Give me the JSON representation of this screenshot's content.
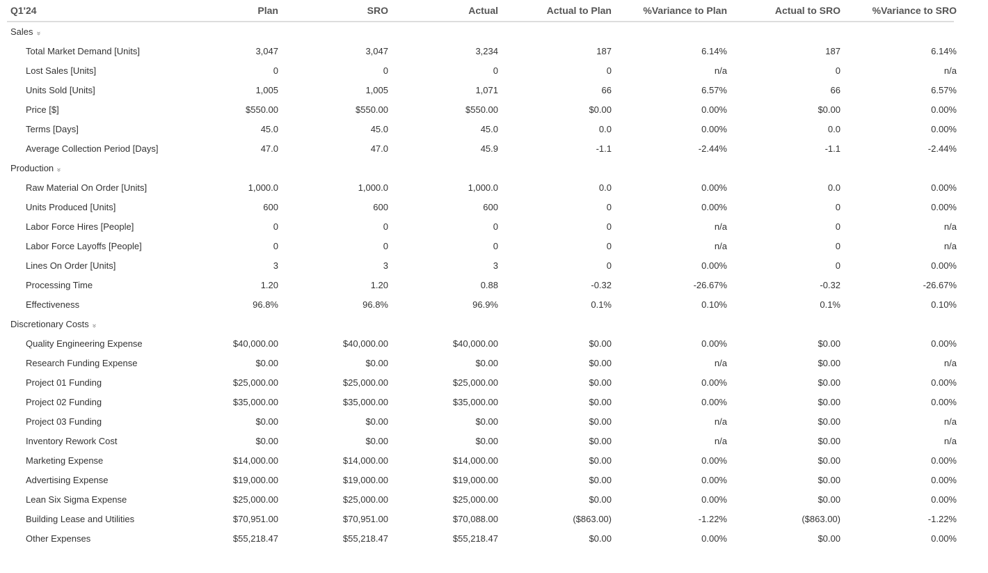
{
  "header": {
    "period": "Q1'24",
    "columns": [
      "Plan",
      "SRO",
      "Actual",
      "Actual to Plan",
      "%Variance to Plan",
      "Actual to SRO",
      "%Variance to SRO"
    ]
  },
  "sections": [
    {
      "title": "Sales",
      "toggle_icon": "double-chevron-down-icon",
      "rows": [
        {
          "label": "Total Market Demand [Units]",
          "values": [
            "3,047",
            "3,047",
            "3,234",
            "187",
            "6.14%",
            "187",
            "6.14%"
          ]
        },
        {
          "label": "Lost Sales [Units]",
          "values": [
            "0",
            "0",
            "0",
            "0",
            "n/a",
            "0",
            "n/a"
          ]
        },
        {
          "label": "Units Sold [Units]",
          "values": [
            "1,005",
            "1,005",
            "1,071",
            "66",
            "6.57%",
            "66",
            "6.57%"
          ]
        },
        {
          "label": "Price [$]",
          "values": [
            "$550.00",
            "$550.00",
            "$550.00",
            "$0.00",
            "0.00%",
            "$0.00",
            "0.00%"
          ]
        },
        {
          "label": "Terms [Days]",
          "values": [
            "45.0",
            "45.0",
            "45.0",
            "0.0",
            "0.00%",
            "0.0",
            "0.00%"
          ]
        },
        {
          "label": "Average Collection Period [Days]",
          "values": [
            "47.0",
            "47.0",
            "45.9",
            "-1.1",
            "-2.44%",
            "-1.1",
            "-2.44%"
          ]
        }
      ]
    },
    {
      "title": "Production",
      "toggle_icon": "double-chevron-down-icon",
      "rows": [
        {
          "label": "Raw Material On Order [Units]",
          "values": [
            "1,000.0",
            "1,000.0",
            "1,000.0",
            "0.0",
            "0.00%",
            "0.0",
            "0.00%"
          ]
        },
        {
          "label": "Units Produced [Units]",
          "values": [
            "600",
            "600",
            "600",
            "0",
            "0.00%",
            "0",
            "0.00%"
          ]
        },
        {
          "label": "Labor Force Hires [People]",
          "values": [
            "0",
            "0",
            "0",
            "0",
            "n/a",
            "0",
            "n/a"
          ]
        },
        {
          "label": "Labor Force Layoffs [People]",
          "values": [
            "0",
            "0",
            "0",
            "0",
            "n/a",
            "0",
            "n/a"
          ]
        },
        {
          "label": "Lines On Order [Units]",
          "values": [
            "3",
            "3",
            "3",
            "0",
            "0.00%",
            "0",
            "0.00%"
          ]
        },
        {
          "label": "Processing Time",
          "values": [
            "1.20",
            "1.20",
            "0.88",
            "-0.32",
            "-26.67%",
            "-0.32",
            "-26.67%"
          ]
        },
        {
          "label": "Effectiveness",
          "values": [
            "96.8%",
            "96.8%",
            "96.9%",
            "0.1%",
            "0.10%",
            "0.1%",
            "0.10%"
          ]
        }
      ]
    },
    {
      "title": "Discretionary Costs",
      "toggle_icon": "double-chevron-down-icon",
      "rows": [
        {
          "label": "Quality Engineering Expense",
          "values": [
            "$40,000.00",
            "$40,000.00",
            "$40,000.00",
            "$0.00",
            "0.00%",
            "$0.00",
            "0.00%"
          ]
        },
        {
          "label": "Research Funding Expense",
          "values": [
            "$0.00",
            "$0.00",
            "$0.00",
            "$0.00",
            "n/a",
            "$0.00",
            "n/a"
          ]
        },
        {
          "label": "Project 01 Funding",
          "values": [
            "$25,000.00",
            "$25,000.00",
            "$25,000.00",
            "$0.00",
            "0.00%",
            "$0.00",
            "0.00%"
          ]
        },
        {
          "label": "Project 02 Funding",
          "values": [
            "$35,000.00",
            "$35,000.00",
            "$35,000.00",
            "$0.00",
            "0.00%",
            "$0.00",
            "0.00%"
          ]
        },
        {
          "label": "Project 03 Funding",
          "values": [
            "$0.00",
            "$0.00",
            "$0.00",
            "$0.00",
            "n/a",
            "$0.00",
            "n/a"
          ]
        },
        {
          "label": "Inventory Rework Cost",
          "values": [
            "$0.00",
            "$0.00",
            "$0.00",
            "$0.00",
            "n/a",
            "$0.00",
            "n/a"
          ]
        },
        {
          "label": "Marketing Expense",
          "values": [
            "$14,000.00",
            "$14,000.00",
            "$14,000.00",
            "$0.00",
            "0.00%",
            "$0.00",
            "0.00%"
          ]
        },
        {
          "label": "Advertising Expense",
          "values": [
            "$19,000.00",
            "$19,000.00",
            "$19,000.00",
            "$0.00",
            "0.00%",
            "$0.00",
            "0.00%"
          ]
        },
        {
          "label": "Lean Six Sigma Expense",
          "values": [
            "$25,000.00",
            "$25,000.00",
            "$25,000.00",
            "$0.00",
            "0.00%",
            "$0.00",
            "0.00%"
          ]
        },
        {
          "label": "Building Lease and Utilities",
          "values": [
            "$70,951.00",
            "$70,951.00",
            "$70,088.00",
            "($863.00)",
            "-1.22%",
            "($863.00)",
            "-1.22%"
          ]
        },
        {
          "label": "Other Expenses",
          "values": [
            "$55,218.47",
            "$55,218.47",
            "$55,218.47",
            "$0.00",
            "0.00%",
            "$0.00",
            "0.00%"
          ]
        }
      ]
    }
  ]
}
